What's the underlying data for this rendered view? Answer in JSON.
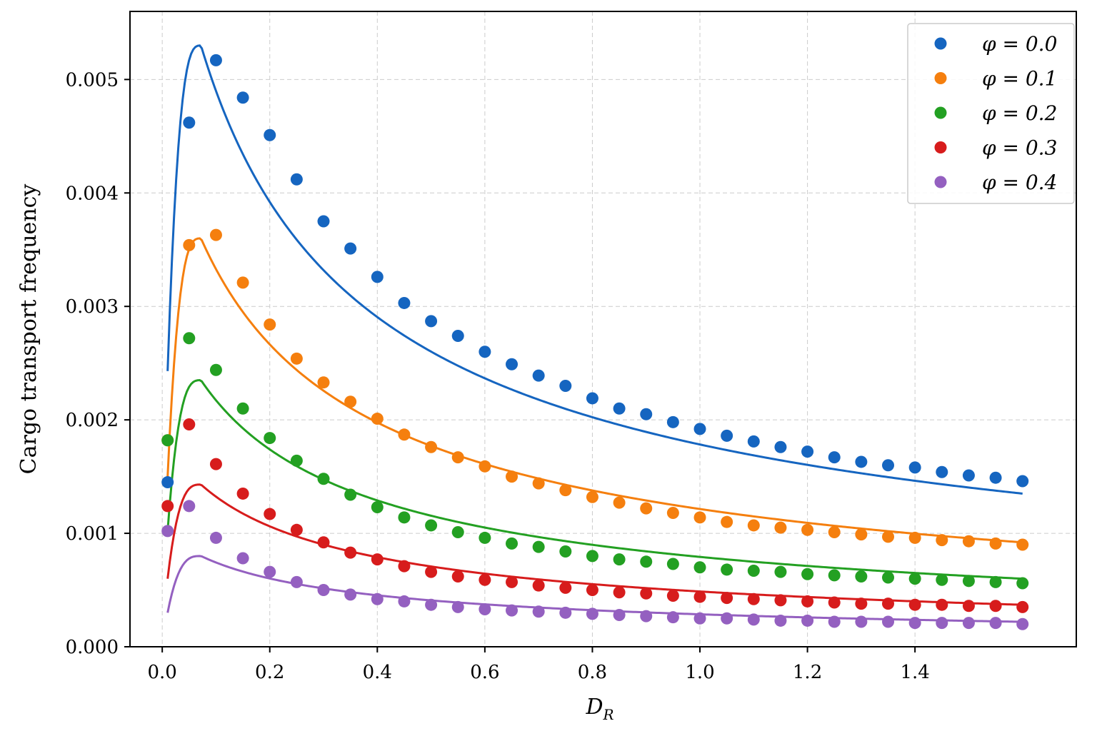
{
  "chart_data": {
    "type": "scatter",
    "xlabel": "D_R",
    "ylabel": "Cargo transport frequency",
    "xlim": [
      -0.06,
      1.7
    ],
    "ylim": [
      0.0,
      0.0056
    ],
    "xticks": [
      "0.0",
      "0.2",
      "0.4",
      "0.6",
      "0.8",
      "1.0",
      "1.2",
      "1.4"
    ],
    "xtick_values": [
      0.0,
      0.2,
      0.4,
      0.6,
      0.8,
      1.0,
      1.2,
      1.4
    ],
    "yticks": [
      "0.000",
      "0.001",
      "0.002",
      "0.003",
      "0.004",
      "0.005"
    ],
    "ytick_values": [
      0.0,
      0.001,
      0.002,
      0.003,
      0.004,
      0.005
    ],
    "grid": true,
    "legend_position": "top-right",
    "x": [
      0.01,
      0.05,
      0.1,
      0.15,
      0.2,
      0.25,
      0.3,
      0.35,
      0.4,
      0.45,
      0.5,
      0.55,
      0.6,
      0.65,
      0.7,
      0.75,
      0.8,
      0.85,
      0.9,
      0.95,
      1.0,
      1.05,
      1.1,
      1.15,
      1.2,
      1.25,
      1.3,
      1.35,
      1.4,
      1.45,
      1.5,
      1.55,
      1.6
    ],
    "series": [
      {
        "name": "φ = 0.0",
        "color": "#1565c0",
        "points": [
          0.00145,
          0.00462,
          0.00517,
          0.00484,
          0.00451,
          0.00412,
          0.00375,
          0.00351,
          0.00326,
          0.00303,
          0.00287,
          0.00274,
          0.0026,
          0.00249,
          0.00239,
          0.0023,
          0.00219,
          0.0021,
          0.00205,
          0.00198,
          0.00192,
          0.00186,
          0.00181,
          0.00176,
          0.00172,
          0.00167,
          0.00163,
          0.0016,
          0.00158,
          0.00154,
          0.00151,
          0.00149,
          0.00146
        ],
        "curve_peak_x": 0.072,
        "curve_peak_y": 0.0053,
        "curve_start_y": 0.00243,
        "curve_end_y": 0.00135
      },
      {
        "name": "φ = 0.1",
        "color": "#f57f0e",
        "points": [
          0.00182,
          0.00354,
          0.00363,
          0.00321,
          0.00284,
          0.00254,
          0.00233,
          0.00216,
          0.00201,
          0.00187,
          0.00176,
          0.00167,
          0.00159,
          0.0015,
          0.00144,
          0.00138,
          0.00132,
          0.00127,
          0.00122,
          0.00118,
          0.00114,
          0.0011,
          0.00107,
          0.00105,
          0.00103,
          0.00101,
          0.00099,
          0.00097,
          0.00096,
          0.00094,
          0.00093,
          0.00091,
          0.0009
        ],
        "curve_peak_x": 0.072,
        "curve_peak_y": 0.0036,
        "curve_start_y": 0.0015,
        "curve_end_y": 0.00092
      },
      {
        "name": "φ = 0.2",
        "color": "#23a022",
        "points": [
          0.00182,
          0.00272,
          0.00244,
          0.0021,
          0.00184,
          0.00164,
          0.00148,
          0.00134,
          0.00123,
          0.00114,
          0.00107,
          0.00101,
          0.00096,
          0.00091,
          0.00088,
          0.00084,
          0.0008,
          0.00077,
          0.00075,
          0.00073,
          0.0007,
          0.00068,
          0.00067,
          0.00066,
          0.00064,
          0.00063,
          0.00062,
          0.00061,
          0.0006,
          0.00059,
          0.00058,
          0.00057,
          0.00056
        ],
        "curve_peak_x": 0.072,
        "curve_peak_y": 0.00235,
        "curve_start_y": 0.00102,
        "curve_end_y": 0.0006
      },
      {
        "name": "φ = 0.3",
        "color": "#d71c1c",
        "points": [
          0.00124,
          0.00196,
          0.00161,
          0.00135,
          0.00117,
          0.00103,
          0.00092,
          0.00083,
          0.00077,
          0.00071,
          0.00066,
          0.00062,
          0.00059,
          0.00057,
          0.00054,
          0.00052,
          0.0005,
          0.00048,
          0.00047,
          0.00045,
          0.00044,
          0.00043,
          0.00042,
          0.00041,
          0.0004,
          0.00039,
          0.00038,
          0.00038,
          0.00037,
          0.00037,
          0.00036,
          0.00036,
          0.00035
        ],
        "curve_peak_x": 0.072,
        "curve_peak_y": 0.00143,
        "curve_start_y": 0.0006,
        "curve_end_y": 0.00037
      },
      {
        "name": "φ = 0.4",
        "color": "#9460c0",
        "points": [
          0.00102,
          0.00124,
          0.00096,
          0.00078,
          0.00066,
          0.00057,
          0.0005,
          0.00046,
          0.00042,
          0.0004,
          0.00037,
          0.00035,
          0.00033,
          0.00032,
          0.00031,
          0.0003,
          0.00029,
          0.00028,
          0.00027,
          0.00026,
          0.00025,
          0.00025,
          0.00024,
          0.00023,
          0.00023,
          0.00022,
          0.00022,
          0.00022,
          0.00021,
          0.00021,
          0.00021,
          0.00021,
          0.0002
        ],
        "curve_peak_x": 0.072,
        "curve_peak_y": 0.0008,
        "curve_start_y": 0.0003,
        "curve_end_y": 0.00022
      }
    ]
  }
}
